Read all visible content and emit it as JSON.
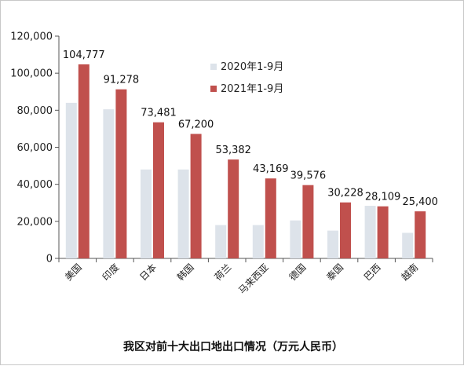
{
  "chart_data": {
    "type": "bar",
    "title": "我区对前十大出口地出口情况（万元人民币）",
    "categories": [
      "美国",
      "印度",
      "日本",
      "韩国",
      "荷兰",
      "马来西亚",
      "德国",
      "泰国",
      "巴西",
      "越南"
    ],
    "series": [
      {
        "name": "2020年1-9月",
        "color": "#dde3ea",
        "values": [
          84000,
          80500,
          48000,
          48000,
          18000,
          18000,
          20500,
          15000,
          28400,
          13800
        ]
      },
      {
        "name": "2021年1-9月",
        "color": "#c0504d",
        "values": [
          104777,
          91278,
          73481,
          67200,
          53382,
          43169,
          39576,
          30228,
          28109,
          25400
        ],
        "data_labels": [
          "104,777",
          "91,278",
          "73,481",
          "67,200",
          "53,382",
          "43,169",
          "39,576",
          "30,228",
          "28,109",
          "25,400"
        ]
      }
    ],
    "ylim": [
      0,
      120000
    ],
    "yticks": [
      "0",
      "20,000",
      "40,000",
      "60,000",
      "80,000",
      "100,000",
      "120,000"
    ],
    "ytick_values": [
      0,
      20000,
      40000,
      60000,
      80000,
      100000,
      120000
    ],
    "legend_position": "top-right",
    "grid": false
  }
}
